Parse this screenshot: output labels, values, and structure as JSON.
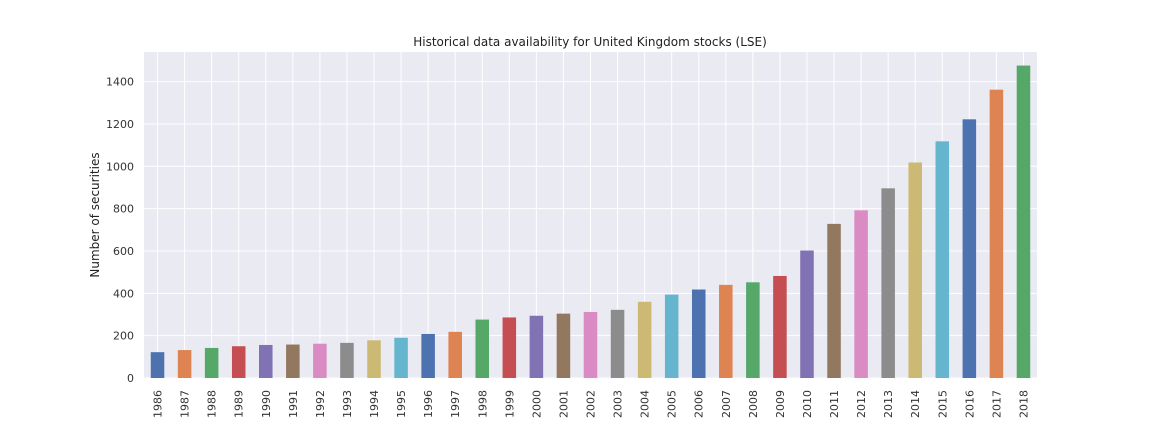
{
  "chart_data": {
    "type": "bar",
    "title": "Historical data availability for United Kingdom stocks (LSE)",
    "xlabel": "",
    "ylabel": "Number of securities",
    "ylim": [
      0,
      1540
    ],
    "yticks": [
      0,
      200,
      400,
      600,
      800,
      1000,
      1200,
      1400
    ],
    "grid": true,
    "categories": [
      "1986",
      "1987",
      "1988",
      "1989",
      "1990",
      "1991",
      "1992",
      "1993",
      "1994",
      "1995",
      "1996",
      "1997",
      "1998",
      "1999",
      "2000",
      "2001",
      "2002",
      "2003",
      "2004",
      "2005",
      "2006",
      "2007",
      "2008",
      "2009",
      "2010",
      "2011",
      "2012",
      "2013",
      "2014",
      "2015",
      "2016",
      "2017",
      "2018"
    ],
    "values": [
      122,
      132,
      142,
      150,
      156,
      158,
      162,
      166,
      178,
      190,
      208,
      218,
      276,
      286,
      294,
      304,
      312,
      322,
      360,
      394,
      418,
      440,
      452,
      482,
      602,
      728,
      792,
      896,
      1018,
      1118,
      1222,
      1362,
      1476
    ],
    "colors": [
      "#4c72b0",
      "#dd8452",
      "#55a868",
      "#c44e52",
      "#8172b3",
      "#937860",
      "#da8bc3",
      "#8c8c8c",
      "#ccb974",
      "#64b5cd"
    ]
  }
}
